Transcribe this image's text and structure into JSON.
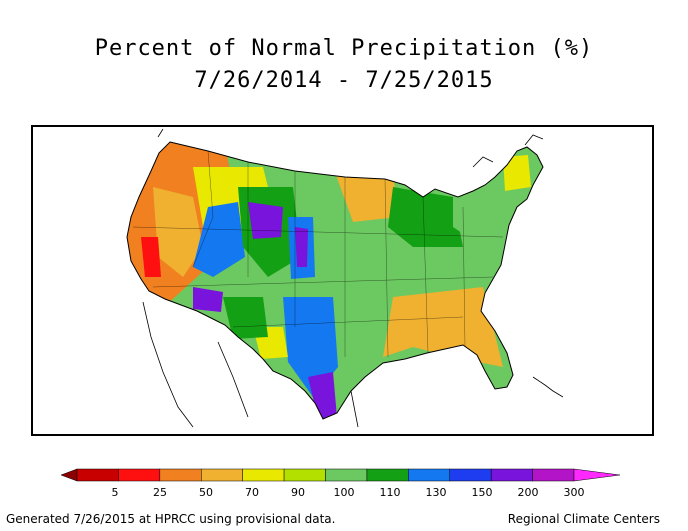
{
  "title": {
    "line1": "Percent of Normal Precipitation (%)",
    "line2": "7/26/2014 - 7/25/2015"
  },
  "legend": {
    "colors": [
      "#8b0000",
      "#c80000",
      "#ff1010",
      "#f08020",
      "#f0b030",
      "#e8e800",
      "#b4e000",
      "#6cc860",
      "#14a014",
      "#1478f0",
      "#1e3cf0",
      "#7814dc",
      "#b414c8",
      "#ff28ff"
    ],
    "ticks": [
      "5",
      "25",
      "50",
      "70",
      "90",
      "100",
      "110",
      "130",
      "150",
      "200",
      "300"
    ]
  },
  "footer": {
    "left": "Generated 7/26/2015 at HPRCC using provisional data.",
    "right": "Regional Climate Centers"
  }
}
